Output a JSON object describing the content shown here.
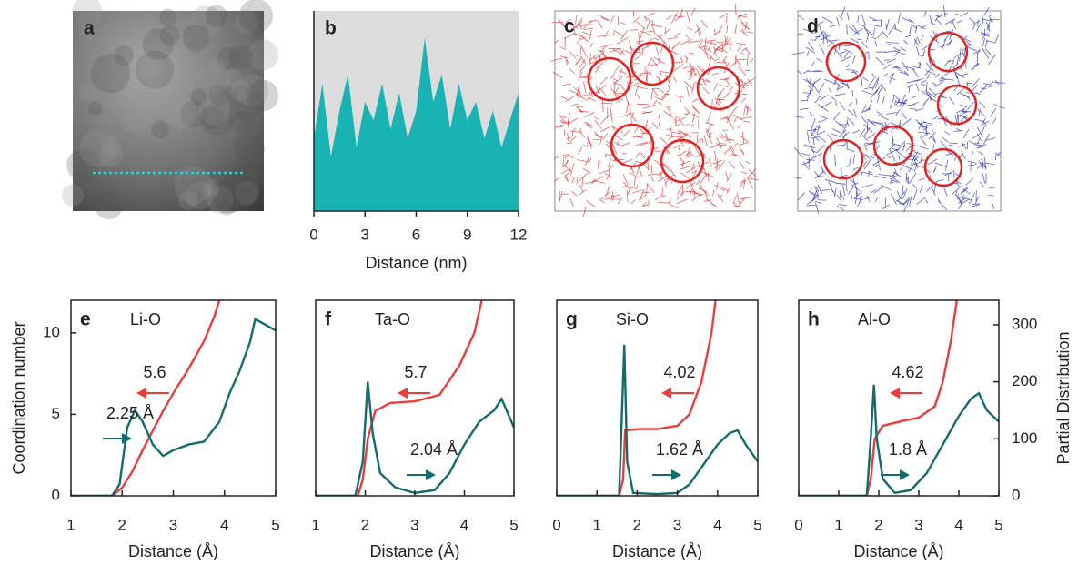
{
  "chart_data": [
    {
      "type": "image",
      "label": "a"
    },
    {
      "type": "area",
      "label": "b",
      "xlabel": "Distance (nm)",
      "color": "#1ab3b3",
      "x": [
        0,
        0.5,
        1,
        1.5,
        2,
        2.5,
        3,
        3.5,
        4,
        4.5,
        5,
        5.5,
        6,
        6.5,
        7,
        7.5,
        8,
        8.5,
        9,
        9.5,
        10,
        10.5,
        11,
        11.5,
        12
      ],
      "values": [
        40,
        70,
        30,
        55,
        75,
        35,
        60,
        50,
        70,
        45,
        65,
        40,
        55,
        95,
        60,
        75,
        45,
        70,
        50,
        60,
        40,
        55,
        35,
        50,
        65
      ],
      "xlim": [
        0,
        12
      ],
      "ylim": [
        0,
        110
      ],
      "xticks": [
        0,
        3,
        6,
        9,
        12
      ]
    },
    {
      "type": "image",
      "label": "c",
      "color": "#e03030"
    },
    {
      "type": "image",
      "label": "d",
      "color": "#2a2ab0"
    },
    {
      "type": "line",
      "label": "e",
      "species": "Li-O",
      "cn_label": "5.6",
      "peak_label": "2.25 Å",
      "xlabel": "Distance (Å)",
      "ylabel": "Coordination number",
      "xlim": [
        1,
        5
      ],
      "ylim": [
        0,
        12
      ],
      "y2lim": [
        0,
        343
      ],
      "xticks": [
        1,
        2,
        3,
        4,
        5
      ],
      "yticks": [
        0,
        5,
        10
      ],
      "series": [
        {
          "color": "#ee3b3b",
          "x": [
            1,
            1.8,
            2.0,
            2.2,
            2.4,
            2.6,
            2.8,
            3.0,
            3.3,
            3.6,
            3.8,
            3.9
          ],
          "values": [
            0,
            0,
            0.5,
            1.5,
            2.8,
            4,
            5.2,
            6.3,
            7.8,
            9.5,
            11,
            12
          ]
        },
        {
          "color": "#136b6b",
          "axis": "y2",
          "x": [
            1,
            1.8,
            1.95,
            2.1,
            2.25,
            2.4,
            2.6,
            2.8,
            3.0,
            3.3,
            3.6,
            3.9,
            4.1,
            4.3,
            4.5,
            4.6,
            4.8,
            5
          ],
          "values": [
            0,
            0,
            20,
            120,
            150,
            130,
            90,
            70,
            80,
            90,
            95,
            130,
            180,
            220,
            270,
            310,
            300,
            290
          ]
        }
      ]
    },
    {
      "type": "line",
      "label": "f",
      "species": "Ta-O",
      "cn_label": "5.7",
      "peak_label": "2.04 Å",
      "xlabel": "Distance (Å)",
      "xlim": [
        1,
        5
      ],
      "ylim": [
        0,
        12
      ],
      "y2lim": [
        0,
        343
      ],
      "xticks": [
        1,
        2,
        3,
        4,
        5
      ],
      "series": [
        {
          "color": "#ee3b3b",
          "x": [
            1,
            1.85,
            1.95,
            2.05,
            2.2,
            2.5,
            3.0,
            3.5,
            3.9,
            4.2,
            4.35
          ],
          "values": [
            0,
            0,
            1,
            3.5,
            5.2,
            5.7,
            5.8,
            6.2,
            8,
            10,
            12
          ]
        },
        {
          "color": "#136b6b",
          "axis": "y2",
          "x": [
            1,
            1.8,
            1.95,
            2.05,
            2.15,
            2.3,
            2.6,
            3.0,
            3.4,
            3.7,
            4.0,
            4.3,
            4.6,
            4.75,
            4.9,
            5
          ],
          "values": [
            0,
            0,
            60,
            200,
            110,
            40,
            15,
            5,
            10,
            40,
            90,
            130,
            150,
            170,
            140,
            120
          ]
        }
      ]
    },
    {
      "type": "line",
      "label": "g",
      "species": "Si-O",
      "cn_label": "4.02",
      "peak_label": "1.62 Å",
      "xlabel": "Distance (Å)",
      "xlim": [
        0,
        5
      ],
      "ylim": [
        0,
        12
      ],
      "y2lim": [
        0,
        343
      ],
      "xticks": [
        0,
        1,
        2,
        3,
        4,
        5
      ],
      "series": [
        {
          "color": "#ee3b3b",
          "x": [
            0,
            1.55,
            1.65,
            1.7,
            2.0,
            2.5,
            3.0,
            3.3,
            3.6,
            3.85,
            3.95
          ],
          "values": [
            0,
            0,
            1,
            4,
            4.1,
            4.1,
            4.3,
            5,
            7,
            10,
            12
          ]
        },
        {
          "color": "#136b6b",
          "axis": "y2",
          "x": [
            0,
            1.55,
            1.6,
            1.68,
            1.75,
            1.9,
            2.5,
            3.0,
            3.3,
            3.7,
            4.0,
            4.3,
            4.5,
            4.7,
            5
          ],
          "values": [
            0,
            0,
            100,
            265,
            60,
            5,
            3,
            5,
            20,
            60,
            90,
            110,
            115,
            90,
            60
          ]
        }
      ]
    },
    {
      "type": "line",
      "label": "h",
      "species": "Al-O",
      "cn_label": "4.62",
      "peak_label": "1.8 Å",
      "xlabel": "Distance (Å)",
      "y2label": "Partial Distribution",
      "xlim": [
        0,
        5
      ],
      "ylim": [
        0,
        12
      ],
      "y2lim": [
        0,
        343
      ],
      "xticks": [
        0,
        1,
        2,
        3,
        4,
        5
      ],
      "y2ticks": [
        0,
        100,
        200,
        300
      ],
      "series": [
        {
          "color": "#ee3b3b",
          "x": [
            0,
            1.7,
            1.8,
            1.9,
            2.1,
            2.6,
            3.0,
            3.4,
            3.6,
            3.8,
            3.95
          ],
          "values": [
            0,
            0,
            1,
            3.5,
            4.3,
            4.6,
            4.8,
            5.5,
            7,
            9.5,
            12
          ]
        },
        {
          "color": "#136b6b",
          "axis": "y2",
          "x": [
            0,
            1.7,
            1.8,
            1.88,
            1.95,
            2.1,
            2.4,
            2.8,
            3.2,
            3.6,
            4.0,
            4.3,
            4.5,
            4.7,
            5
          ],
          "values": [
            0,
            0,
            100,
            195,
            100,
            30,
            5,
            10,
            40,
            90,
            140,
            170,
            180,
            150,
            130
          ]
        }
      ]
    }
  ]
}
